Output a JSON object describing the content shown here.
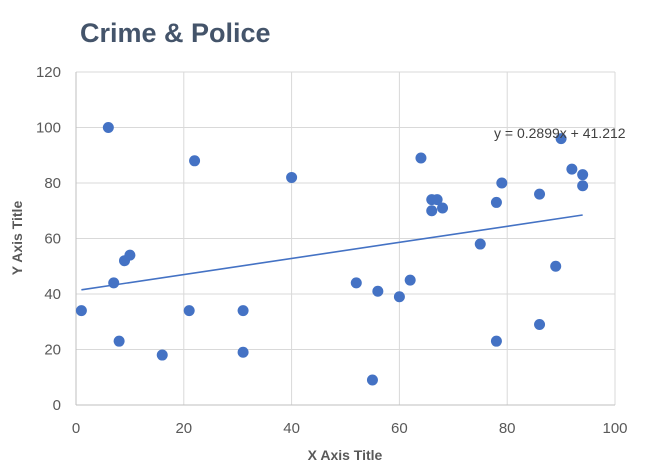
{
  "chart_data": {
    "type": "scatter",
    "title": "Crime & Police",
    "xlabel": "X Axis Title",
    "ylabel": "Y Axis Title",
    "xlim": [
      0,
      100
    ],
    "ylim": [
      0,
      120
    ],
    "x_ticks": [
      0,
      20,
      40,
      60,
      80,
      100
    ],
    "y_ticks": [
      0,
      20,
      40,
      60,
      80,
      100,
      120
    ],
    "grid": true,
    "marker_color": "#4472c4",
    "trendline": {
      "label": "y = 0.2899x + 41.212",
      "slope": 0.2899,
      "intercept": 41.212,
      "x_range": [
        1,
        94
      ],
      "color": "#4472c4"
    },
    "points": [
      {
        "x": 1,
        "y": 34
      },
      {
        "x": 6,
        "y": 100
      },
      {
        "x": 7,
        "y": 44
      },
      {
        "x": 8,
        "y": 23
      },
      {
        "x": 9,
        "y": 52
      },
      {
        "x": 10,
        "y": 54
      },
      {
        "x": 16,
        "y": 18
      },
      {
        "x": 21,
        "y": 34
      },
      {
        "x": 22,
        "y": 88
      },
      {
        "x": 31,
        "y": 34
      },
      {
        "x": 31,
        "y": 19
      },
      {
        "x": 40,
        "y": 82
      },
      {
        "x": 52,
        "y": 44
      },
      {
        "x": 55,
        "y": 9
      },
      {
        "x": 56,
        "y": 41
      },
      {
        "x": 60,
        "y": 39
      },
      {
        "x": 62,
        "y": 45
      },
      {
        "x": 64,
        "y": 89
      },
      {
        "x": 66,
        "y": 74
      },
      {
        "x": 66,
        "y": 70
      },
      {
        "x": 67,
        "y": 74
      },
      {
        "x": 68,
        "y": 71
      },
      {
        "x": 75,
        "y": 58
      },
      {
        "x": 78,
        "y": 73
      },
      {
        "x": 78,
        "y": 23
      },
      {
        "x": 79,
        "y": 80
      },
      {
        "x": 86,
        "y": 76
      },
      {
        "x": 86,
        "y": 29
      },
      {
        "x": 89,
        "y": 50
      },
      {
        "x": 90,
        "y": 96
      },
      {
        "x": 92,
        "y": 85
      },
      {
        "x": 94,
        "y": 83
      },
      {
        "x": 94,
        "y": 79
      }
    ]
  }
}
